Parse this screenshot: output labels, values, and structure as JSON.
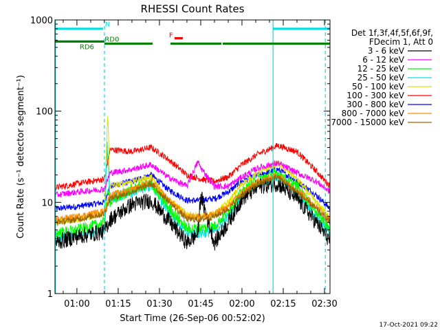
{
  "chart_data": {
    "type": "line",
    "title": "RHESSI Count Rates",
    "xlabel": "Start Time (26-Sep-06 00:52:02)",
    "ylabel": "Count Rate (s⁻¹ detector segment⁻¹)",
    "yscale": "log",
    "xlim_minutes": [
      52.03,
      152
    ],
    "ylim": [
      1,
      1000
    ],
    "x_ticks": [
      {
        "label": "01:00",
        "minute": 60
      },
      {
        "label": "01:15",
        "minute": 75
      },
      {
        "label": "01:30",
        "minute": 90
      },
      {
        "label": "01:45",
        "minute": 105
      },
      {
        "label": "02:00",
        "minute": 120
      },
      {
        "label": "02:15",
        "minute": 135
      },
      {
        "label": "02:30",
        "minute": 150
      }
    ],
    "y_ticks": [
      {
        "label": "1",
        "value": 1
      },
      {
        "label": "10",
        "value": 10
      },
      {
        "label": "100",
        "value": 100
      },
      {
        "label": "1000",
        "value": 1000
      }
    ],
    "legend_header": [
      "Det 1f,3f,4f,5f,6f,9f,",
      "FDecim 1, Att 0"
    ],
    "legend_position": "right",
    "timestamp": "17-Oct-2021 09:22",
    "series": [
      {
        "name": "3 - 6 keV",
        "color": "#000000",
        "x": [
          52,
          60,
          70,
          72,
          80,
          87,
          93,
          100,
          104,
          105,
          110,
          115,
          120,
          126,
          133,
          140,
          147,
          152
        ],
        "y": [
          3.6,
          4.2,
          4.8,
          6.5,
          9.5,
          10.5,
          6.5,
          3.6,
          4.5,
          12,
          3.6,
          6,
          11,
          15,
          16,
          11,
          6,
          3.8
        ]
      },
      {
        "name": "6 - 12 keV",
        "color": "#ff00ff",
        "x": [
          52,
          60,
          70,
          72,
          80,
          87,
          93,
          100,
          104,
          105,
          110,
          115,
          120,
          126,
          133,
          140,
          147,
          152
        ],
        "y": [
          12,
          13,
          14,
          21,
          23,
          26,
          19,
          15,
          28,
          24,
          15,
          15,
          19,
          24,
          27,
          21,
          17,
          13
        ]
      },
      {
        "name": "12 - 25 keV",
        "color": "#00ff00",
        "x": [
          52,
          60,
          70,
          71.5,
          72,
          80,
          87,
          93,
          100,
          105,
          110,
          115,
          120,
          126,
          133,
          140,
          147,
          152
        ],
        "y": [
          4.6,
          5,
          6,
          15,
          10,
          14,
          16,
          9,
          5.2,
          5.2,
          5.5,
          8,
          13,
          18,
          21,
          15,
          8,
          5
        ]
      },
      {
        "name": "25 - 50 keV",
        "color": "#00e0e0",
        "x": [
          52,
          60,
          70,
          71,
          72,
          80,
          87,
          93,
          100,
          105,
          110,
          115,
          120,
          126,
          133,
          140,
          147,
          152
        ],
        "y": [
          4,
          4.4,
          5,
          45,
          11,
          13,
          15,
          8.5,
          4.6,
          4.6,
          4.8,
          7,
          12,
          16,
          19,
          13,
          7,
          4.5
        ]
      },
      {
        "name": "50 - 100 keV",
        "color": "#e0e000",
        "x": [
          52,
          60,
          70,
          71.2,
          72,
          80,
          87,
          93,
          100,
          105,
          110,
          115,
          120,
          126,
          133,
          140,
          147,
          152
        ],
        "y": [
          6,
          6.5,
          7.5,
          100,
          15,
          17,
          19,
          11,
          7.5,
          7,
          7.5,
          10,
          16,
          21,
          27,
          18,
          10,
          7
        ]
      },
      {
        "name": "100 - 300 keV",
        "color": "#ff0000",
        "x": [
          52,
          60,
          70,
          72,
          80,
          87,
          93,
          100,
          105,
          110,
          115,
          120,
          126,
          133,
          140,
          147,
          152
        ],
        "y": [
          14.5,
          16,
          18,
          38,
          36,
          40,
          30,
          20,
          18,
          17,
          19,
          26,
          34,
          42,
          36,
          22,
          15
        ]
      },
      {
        "name": "300 - 800 keV",
        "color": "#0000ff",
        "x": [
          52,
          60,
          70,
          72,
          80,
          87,
          93,
          100,
          105,
          110,
          115,
          120,
          126,
          133,
          140,
          147,
          152
        ],
        "y": [
          8.5,
          9,
          10,
          15,
          17,
          20,
          14,
          10.5,
          10.5,
          11,
          13,
          17,
          20,
          23,
          17,
          12,
          8.5
        ]
      },
      {
        "name": "800 - 7000 keV",
        "color": "#ff8c00",
        "x": [
          52,
          60,
          70,
          72,
          80,
          87,
          93,
          100,
          105,
          110,
          115,
          120,
          126,
          133,
          140,
          147,
          152
        ],
        "y": [
          6.5,
          7,
          8,
          12,
          14,
          17,
          11,
          7,
          7,
          7.5,
          9,
          13,
          17,
          20,
          14,
          9,
          6.5
        ]
      },
      {
        "name": "7000 - 15000 keV",
        "color": "#996600",
        "x": [
          52,
          60,
          70,
          72,
          80,
          87,
          93,
          100,
          105,
          110,
          115,
          120,
          126,
          133,
          140,
          147,
          152
        ],
        "y": [
          6,
          6.5,
          7.5,
          11,
          13,
          16,
          10.5,
          6.5,
          6.5,
          7,
          8.5,
          12,
          16,
          19,
          13,
          8.5,
          6
        ]
      }
    ],
    "vertical_lines": [
      {
        "minute": 52.2,
        "style": "solid",
        "color": "#00e0e0"
      },
      {
        "minute": 70,
        "style": "dashed",
        "color": "#00e0e0"
      },
      {
        "minute": 131.3,
        "style": "solid",
        "color": "#00e0e0"
      },
      {
        "minute": 150.3,
        "style": "dashed",
        "color": "#00e0e0"
      }
    ],
    "flag_bars": [
      {
        "label": "N",
        "color": "#00e0e0",
        "y": 800,
        "spans": [
          [
            52.4,
            69.5
          ],
          [
            131.3,
            152
          ]
        ]
      },
      {
        "label": "F",
        "color": "#ff0000",
        "y": 630,
        "spans": [
          [
            95.5,
            98.5
          ]
        ]
      },
      {
        "label": "RD0",
        "color": "#008000",
        "y": 550,
        "spans": [
          [
            70,
            87.5
          ],
          [
            94,
            112.5
          ],
          [
            113,
            142.5
          ],
          [
            142.5,
            152
          ]
        ]
      },
      {
        "label": "RD6",
        "color": "#008000",
        "y": 580,
        "spans": [
          [
            52,
            70
          ]
        ]
      }
    ],
    "flag_labels": [
      {
        "text": "N",
        "color": "#00e0e0",
        "minute": 70.2,
        "y": 850
      },
      {
        "text": "F",
        "color": "#ff0000",
        "minute": 93.5,
        "y": 640
      },
      {
        "text": "RD0",
        "color": "#008000",
        "minute": 70.1,
        "y": 580
      },
      {
        "text": "RD6",
        "color": "#008000",
        "minute": 61,
        "y": 480
      }
    ]
  }
}
